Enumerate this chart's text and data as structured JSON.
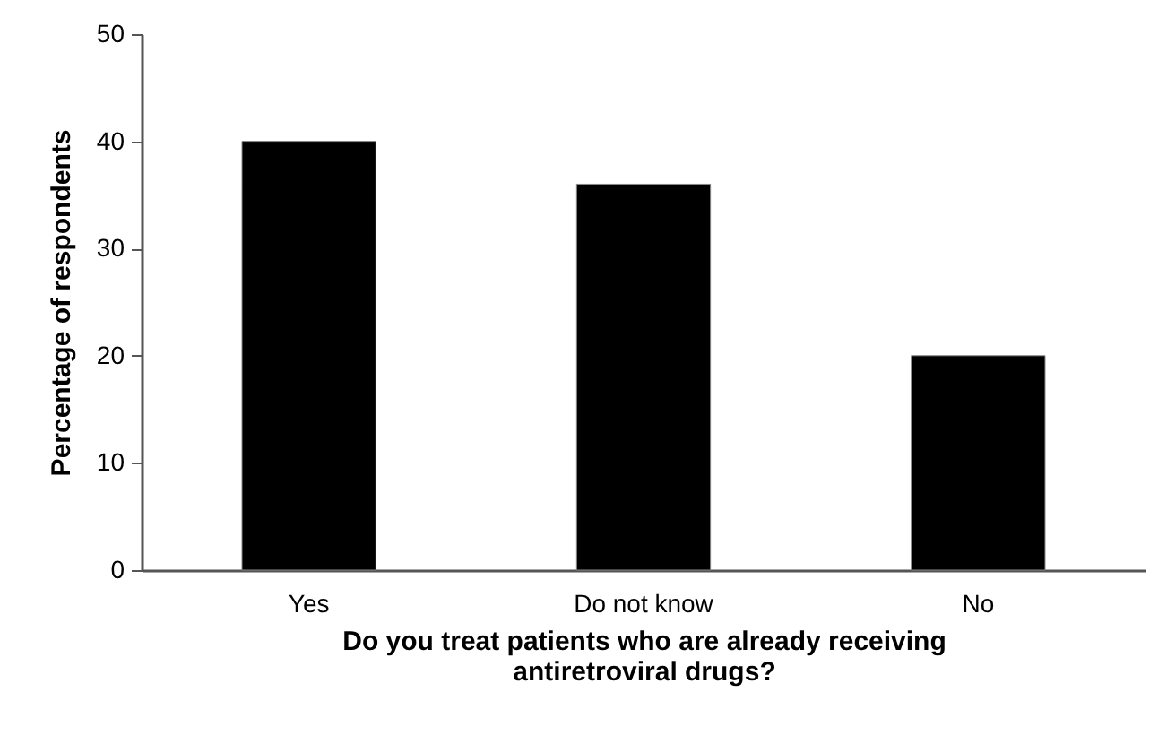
{
  "chart_data": {
    "type": "bar",
    "xlabel": "Do you treat patients who are already receiving\nantiretroviral drugs?",
    "ylabel": "Percentage of respondents",
    "categories": [
      "Yes",
      "Do not know",
      "No"
    ],
    "values": [
      40,
      36,
      20
    ],
    "color": "#000000",
    "ylim": [
      0,
      50
    ],
    "yticks": [
      0,
      10,
      20,
      30,
      40,
      50
    ],
    "grid": false
  }
}
